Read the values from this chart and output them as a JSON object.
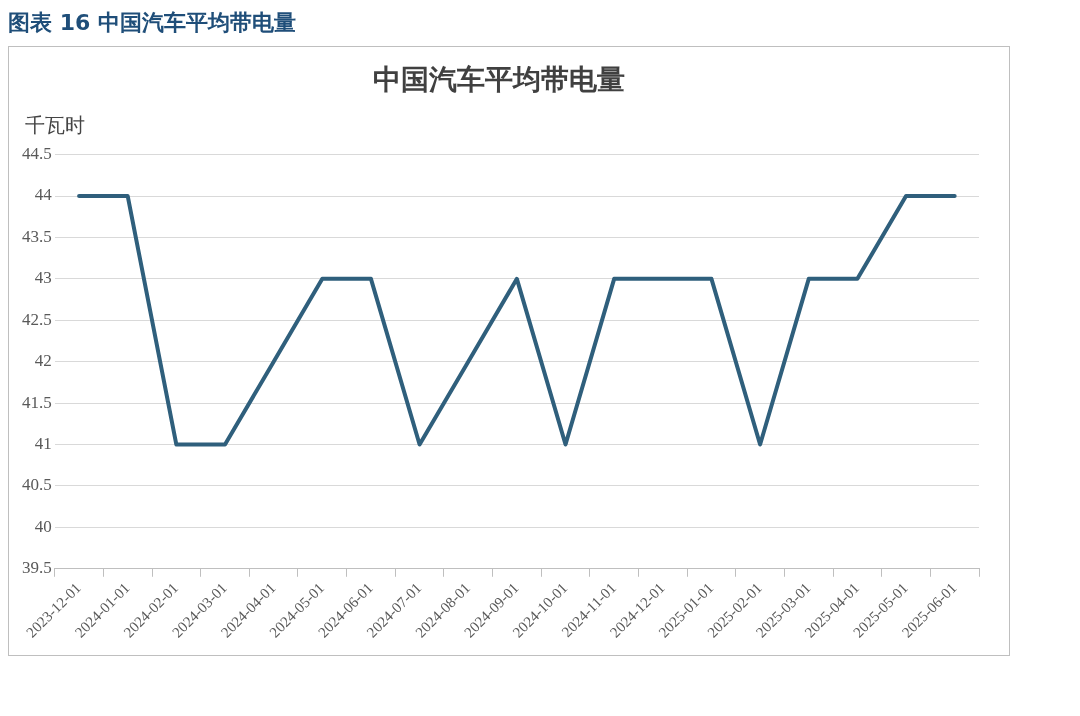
{
  "chart_data": {
    "type": "line",
    "title": "中国汽车平均带电量",
    "ylabel": "千瓦时",
    "annotations": [
      "图表 16 中国汽车平均带电量"
    ],
    "categories": [
      "2023-12-01",
      "2024-01-01",
      "2024-02-01",
      "2024-03-01",
      "2024-04-01",
      "2024-05-01",
      "2024-06-01",
      "2024-07-01",
      "2024-08-01",
      "2024-09-01",
      "2024-10-01",
      "2024-11-01",
      "2024-12-01",
      "2025-01-01",
      "2025-02-01",
      "2025-03-01",
      "2025-04-01",
      "2025-05-01",
      "2025-06-01"
    ],
    "series": [
      {
        "color": "#2f5f7c",
        "values": [
          44,
          44,
          41,
          41,
          42,
          43,
          43,
          41,
          42,
          43,
          41,
          43,
          43,
          43,
          41,
          43,
          43,
          44,
          44
        ]
      }
    ],
    "ylim": [
      39.5,
      44.5
    ],
    "yticks": [
      39.5,
      40,
      40.5,
      41,
      41.5,
      42,
      42.5,
      43,
      43.5,
      44,
      44.5
    ],
    "grid": "y",
    "legend": false,
    "marker": "none",
    "line_style": "solid"
  }
}
